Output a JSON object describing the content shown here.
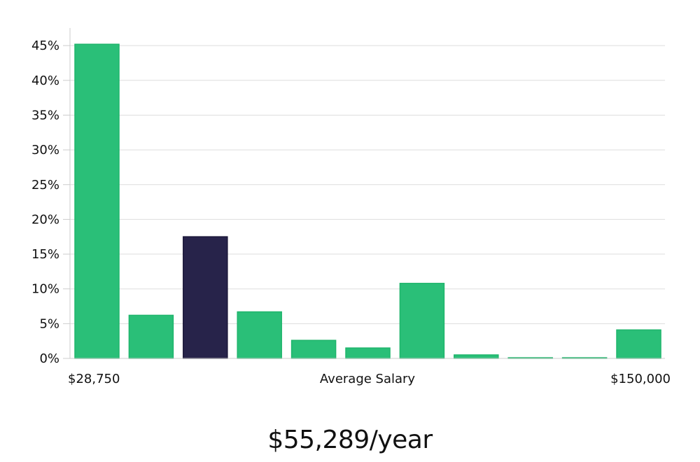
{
  "chart_data": {
    "type": "bar",
    "title": "",
    "xlabel": "Average Salary",
    "ylabel": "",
    "x_min_label": "$28,750",
    "x_max_label": "$150,000",
    "ylim": [
      0,
      47.5
    ],
    "y_ticks": [
      0,
      5,
      10,
      15,
      20,
      25,
      30,
      35,
      40,
      45
    ],
    "y_tick_labels": [
      "0%",
      "5%",
      "10%",
      "15%",
      "20%",
      "25%",
      "30%",
      "35%",
      "40%",
      "45%"
    ],
    "values": [
      45.2,
      6.2,
      17.5,
      6.7,
      2.6,
      1.5,
      10.8,
      0.5,
      0.1,
      0.1,
      4.1
    ],
    "highlight_index": 2,
    "grid": true,
    "colors": {
      "bar": "#2abf78",
      "highlight": "#27234a",
      "grid": "#dddddd",
      "axis": "#cccccc"
    }
  },
  "footer": {
    "average_salary": "$55,289/year"
  }
}
